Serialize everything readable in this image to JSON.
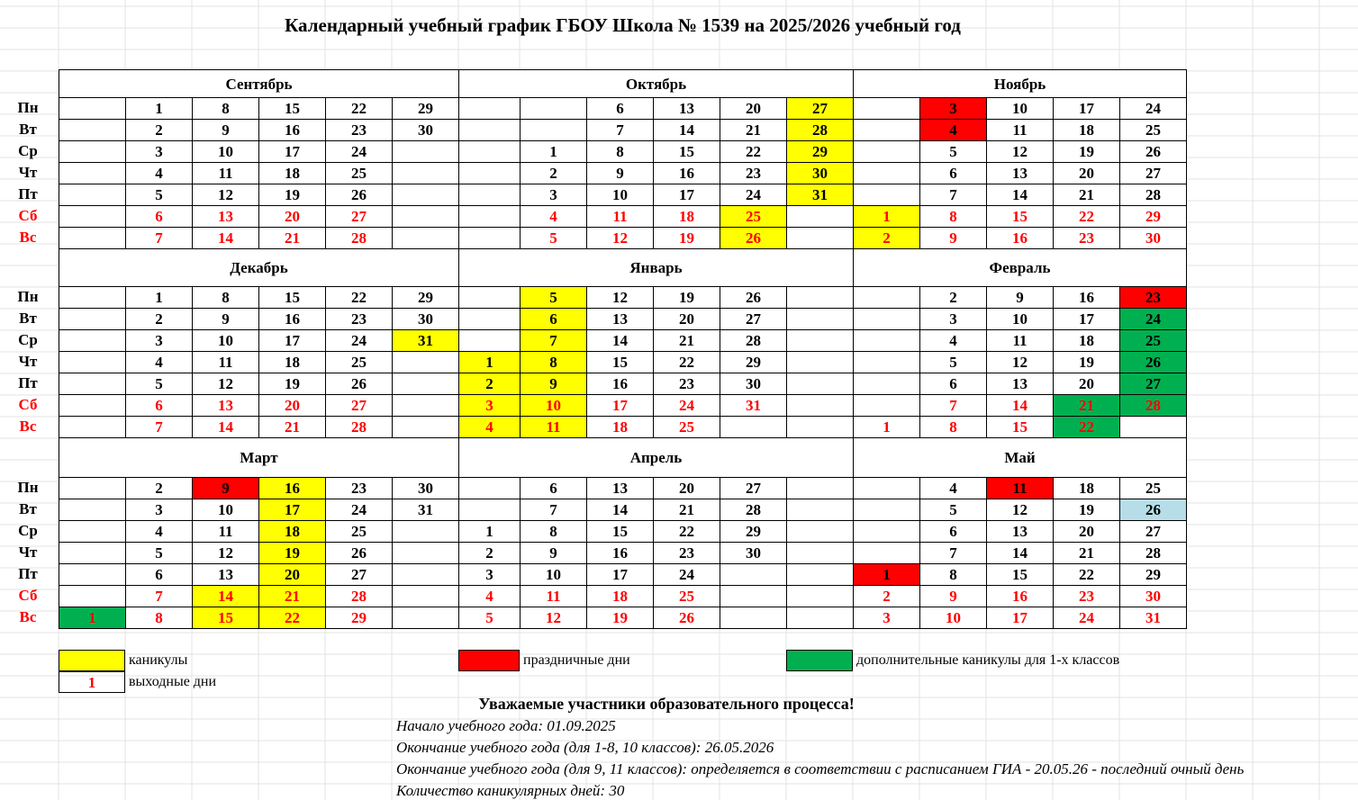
{
  "title": "Календарный учебный график  ГБОУ Школа № 1539 на 2025/2026 учебный год",
  "colors": {
    "vacation": "#ffff00",
    "holiday": "#ff0000",
    "extra_vacation": "#00b050",
    "weekend_text": "#ff0000",
    "last_day": "#b7dee8"
  },
  "weekdays": [
    "Пн",
    "Вт",
    "Ср",
    "Чт",
    "Пт",
    "Сб",
    "Вс"
  ],
  "months": [
    {
      "name": "Сентябрь",
      "cols": [
        [
          null,
          null,
          null,
          null,
          null,
          null,
          null
        ],
        [
          1,
          2,
          3,
          4,
          5,
          6,
          7
        ],
        [
          8,
          9,
          10,
          11,
          12,
          13,
          14
        ],
        [
          15,
          16,
          17,
          18,
          19,
          20,
          21
        ],
        [
          22,
          23,
          24,
          25,
          26,
          27,
          28
        ],
        [
          29,
          30,
          null,
          null,
          null,
          null,
          null
        ]
      ],
      "marks": {}
    },
    {
      "name": "Октябрь",
      "cols": [
        [
          null,
          null,
          null,
          null,
          null,
          null,
          null
        ],
        [
          null,
          null,
          1,
          2,
          3,
          4,
          5
        ],
        [
          6,
          7,
          8,
          9,
          10,
          11,
          12
        ],
        [
          13,
          14,
          15,
          16,
          17,
          18,
          19
        ],
        [
          20,
          21,
          22,
          23,
          24,
          25,
          26
        ],
        [
          27,
          28,
          29,
          30,
          31,
          null,
          null
        ]
      ],
      "marks": {
        "25": "vac",
        "26": "vac",
        "27": "vac",
        "28": "vac",
        "29": "vac",
        "30": "vac",
        "31": "vac"
      }
    },
    {
      "name": "Ноябрь",
      "cols": [
        [
          null,
          null,
          null,
          null,
          null,
          1,
          2
        ],
        [
          3,
          4,
          5,
          6,
          7,
          8,
          9
        ],
        [
          10,
          11,
          12,
          13,
          14,
          15,
          16
        ],
        [
          17,
          18,
          19,
          20,
          21,
          22,
          23
        ],
        [
          24,
          25,
          26,
          27,
          28,
          29,
          30
        ]
      ],
      "marks": {
        "1": "vac",
        "2": "vac",
        "3": "holiday",
        "4": "holiday"
      }
    },
    {
      "name": "Декабрь",
      "cols": [
        [
          null,
          null,
          null,
          null,
          null,
          null,
          null
        ],
        [
          1,
          2,
          3,
          4,
          5,
          6,
          7
        ],
        [
          8,
          9,
          10,
          11,
          12,
          13,
          14
        ],
        [
          15,
          16,
          17,
          18,
          19,
          20,
          21
        ],
        [
          22,
          23,
          24,
          25,
          26,
          27,
          28
        ],
        [
          29,
          30,
          31,
          null,
          null,
          null,
          null
        ]
      ],
      "marks": {
        "31": "vac"
      }
    },
    {
      "name": "Январь",
      "cols": [
        [
          null,
          null,
          null,
          1,
          2,
          3,
          4
        ],
        [
          5,
          6,
          7,
          8,
          9,
          10,
          11
        ],
        [
          12,
          13,
          14,
          15,
          16,
          17,
          18
        ],
        [
          19,
          20,
          21,
          22,
          23,
          24,
          25
        ],
        [
          26,
          27,
          28,
          29,
          30,
          31,
          null
        ],
        [
          null,
          null,
          null,
          null,
          null,
          null,
          null
        ]
      ],
      "marks": {
        "1": "vac",
        "2": "vac",
        "3": "vac",
        "4": "vac",
        "5": "vac",
        "6": "vac",
        "7": "vac",
        "8": "vac",
        "9": "vac",
        "10": "vac",
        "11": "vac"
      }
    },
    {
      "name": "Февраль",
      "cols": [
        [
          null,
          null,
          null,
          null,
          null,
          null,
          1
        ],
        [
          2,
          3,
          4,
          5,
          6,
          7,
          8
        ],
        [
          9,
          10,
          11,
          12,
          13,
          14,
          15
        ],
        [
          16,
          17,
          18,
          19,
          20,
          21,
          22
        ],
        [
          23,
          24,
          25,
          26,
          27,
          28,
          null
        ]
      ],
      "marks": {
        "21": "extra",
        "22": "extra",
        "23": "holiday",
        "24": "extra",
        "25": "extra",
        "26": "extra",
        "27": "extra",
        "28": "extra"
      }
    },
    {
      "name": "Март",
      "cols": [
        [
          null,
          null,
          null,
          null,
          null,
          null,
          1
        ],
        [
          2,
          3,
          4,
          5,
          6,
          7,
          8
        ],
        [
          9,
          10,
          11,
          12,
          13,
          14,
          15
        ],
        [
          16,
          17,
          18,
          19,
          20,
          21,
          22
        ],
        [
          23,
          24,
          25,
          26,
          27,
          28,
          29
        ],
        [
          30,
          31,
          null,
          null,
          null,
          null,
          null
        ]
      ],
      "marks": {
        "1": "extra",
        "9": "holiday",
        "14": "vac",
        "15": "vac",
        "16": "vac",
        "17": "vac",
        "18": "vac",
        "19": "vac",
        "20": "vac",
        "21": "vac",
        "22": "vac"
      }
    },
    {
      "name": "Апрель",
      "cols": [
        [
          null,
          null,
          1,
          2,
          3,
          4,
          5
        ],
        [
          6,
          7,
          8,
          9,
          10,
          11,
          12
        ],
        [
          13,
          14,
          15,
          16,
          17,
          18,
          19
        ],
        [
          20,
          21,
          22,
          23,
          24,
          25,
          26
        ],
        [
          27,
          28,
          29,
          30,
          null,
          null,
          null
        ],
        [
          null,
          null,
          null,
          null,
          null,
          null,
          null
        ]
      ],
      "marks": {}
    },
    {
      "name": "Май",
      "cols": [
        [
          null,
          null,
          null,
          null,
          1,
          2,
          3
        ],
        [
          4,
          5,
          6,
          7,
          8,
          9,
          10
        ],
        [
          11,
          12,
          13,
          14,
          15,
          16,
          17
        ],
        [
          18,
          19,
          20,
          21,
          22,
          23,
          24
        ],
        [
          25,
          26,
          27,
          28,
          29,
          30,
          31
        ]
      ],
      "marks": {
        "1": "holiday",
        "11": "holiday",
        "26": "blue"
      }
    }
  ],
  "legend": {
    "vacation": "каникулы",
    "holiday": "праздничные дни",
    "extra": "дополнительные каникулы для 1-х классов",
    "weekend_sample": "1",
    "weekend": "выходные дни"
  },
  "notes": {
    "heading": "Уважаемые участники образовательного процесса!",
    "lines": [
      "Начало учебного года: 01.09.2025",
      "Окончание учебного года (для 1-8, 10 классов): 26.05.2026",
      "Окончание учебного года (для 9, 11 классов): определяется в соответствии с расписанием ГИА - 20.05.26 - последний очный день",
      "Количество каникулярных дней: 30"
    ]
  }
}
